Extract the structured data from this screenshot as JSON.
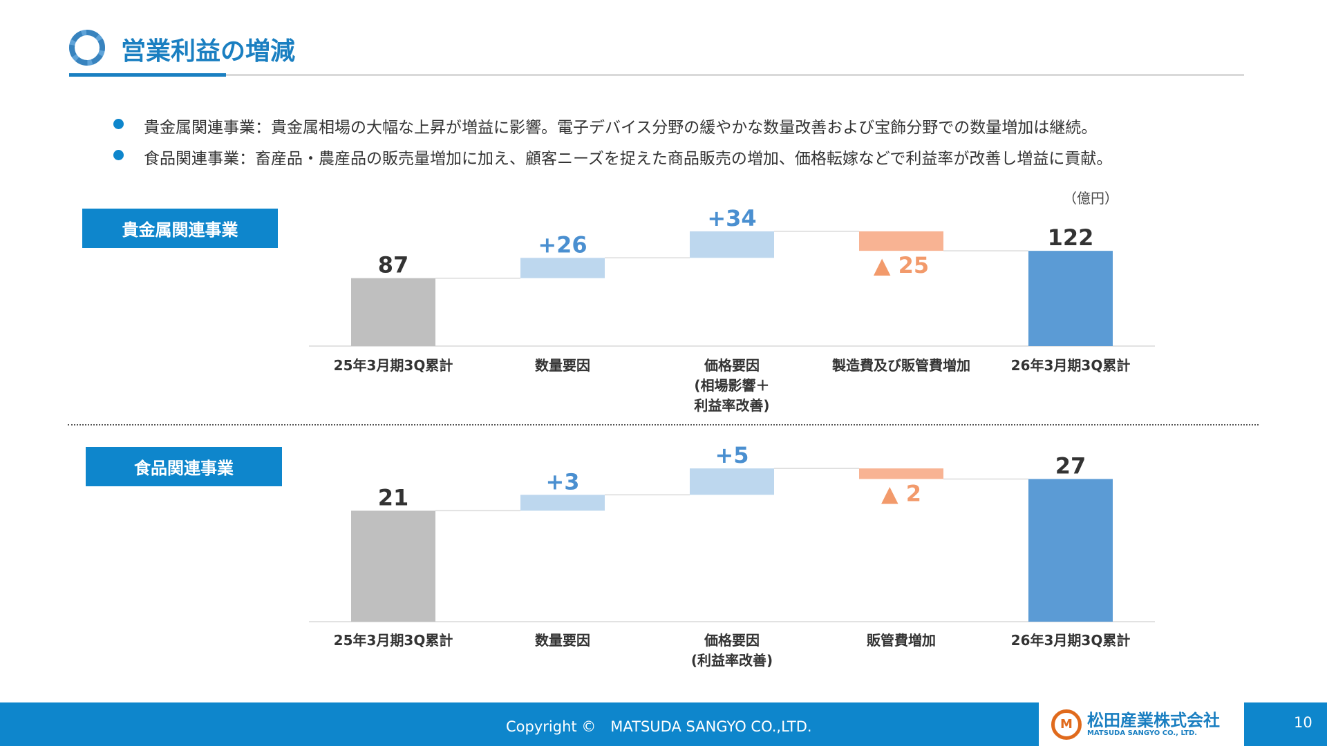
{
  "header": {
    "title": "営業利益の増減"
  },
  "bullets": [
    "貴金属関連事業：貴金属相場の大幅な上昇が増益に影響。電子デバイス分野の緩やかな数量改善および宝飾分野での数量増加は継続。",
    "食品関連事業：畜産品・農産品の販売量増加に加え、顧客ニーズを捉えた商品販売の増加、価格転嫁などで利益率が改善し増益に貢献。"
  ],
  "unit": "（億円）",
  "colors": {
    "start": "#bfbfbf",
    "increase": "#bdd7ee",
    "decrease": "#f8b393",
    "end": "#5b9bd5",
    "increase_label": "#4a8fd0",
    "decrease_label": "#f29a6b",
    "accent": "#0e86cc"
  },
  "chart_data": [
    {
      "type": "waterfall",
      "segment": "貴金属関連事業",
      "categories": [
        [
          "25年3月期3Q累計"
        ],
        [
          "数量要因"
        ],
        [
          "価格要因",
          "(相場影響＋",
          "利益率改善)"
        ],
        [
          "製造費及び販管費増加"
        ],
        [
          "26年3月期3Q累計"
        ]
      ],
      "kinds": [
        "start",
        "increase",
        "increase",
        "decrease",
        "end"
      ],
      "values": [
        87,
        26,
        34,
        -25,
        122
      ],
      "labels": [
        "87",
        "+26",
        "+34",
        "▲ 25",
        "122"
      ]
    },
    {
      "type": "waterfall",
      "segment": "食品関連事業",
      "categories": [
        [
          "25年3月期3Q累計"
        ],
        [
          "数量要因"
        ],
        [
          "価格要因",
          "(利益率改善)"
        ],
        [
          "販管費増加"
        ],
        [
          "26年3月期3Q累計"
        ]
      ],
      "kinds": [
        "start",
        "increase",
        "increase",
        "decrease",
        "end"
      ],
      "values": [
        21,
        3,
        5,
        -2,
        27
      ],
      "labels": [
        "21",
        "+3",
        "+5",
        "▲ 2",
        "27"
      ]
    }
  ],
  "footer": {
    "copyright": "Copyright ©　MATSUDA SANGYO CO.,LTD.",
    "logo_jp": "松田産業株式会社",
    "logo_en": "MATSUDA SANGYO CO., LTD.",
    "page": "10"
  }
}
